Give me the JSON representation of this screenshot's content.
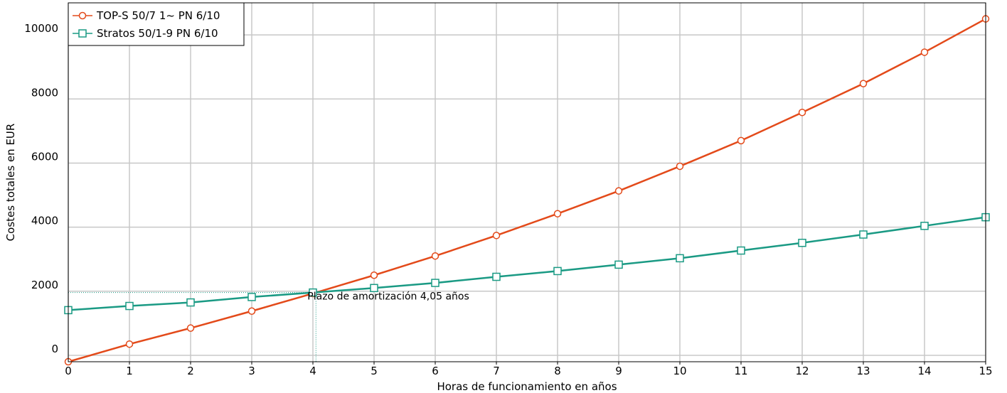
{
  "chart_data": {
    "type": "line",
    "title": "",
    "xlabel": "Horas de funcionamiento en años",
    "ylabel": "Costes totales en EUR",
    "xlim": [
      0,
      15
    ],
    "ylim": [
      -200,
      11000
    ],
    "x_ticks": [
      0,
      1,
      2,
      3,
      4,
      5,
      6,
      7,
      8,
      9,
      10,
      11,
      12,
      13,
      14,
      15
    ],
    "x_tick_labels": [
      "0",
      "1",
      "2",
      "3",
      "4",
      "5",
      "6",
      "7",
      "8",
      "9",
      "10",
      "11",
      "12",
      "13",
      "14",
      "15"
    ],
    "y_ticks": [
      0,
      2000,
      4000,
      6000,
      8000,
      10000
    ],
    "y_tick_labels": [
      "0",
      "2000",
      "4000",
      "6000",
      "8000",
      "10000"
    ],
    "grid": true,
    "legend_position": "top-left",
    "x": [
      0,
      1,
      2,
      3,
      4,
      5,
      6,
      7,
      8,
      9,
      10,
      11,
      12,
      13,
      14,
      15
    ],
    "series": [
      {
        "name": "TOP-S 50/7 1~ PN 6/10",
        "color": "#e34a1a",
        "marker": "circle",
        "values": [
          -200,
          350,
          850,
          1380,
          1930,
          2500,
          3100,
          3740,
          4420,
          5130,
          5900,
          6700,
          7580,
          8480,
          9460,
          10500
        ]
      },
      {
        "name": "Stratos 50/1-9 PN 6/10",
        "color": "#1a9a84",
        "marker": "square",
        "values": [
          1410,
          1540,
          1650,
          1820,
          1960,
          2100,
          2260,
          2450,
          2630,
          2830,
          3030,
          3270,
          3510,
          3770,
          4040,
          4310
        ]
      }
    ],
    "annotation": {
      "text": "Plazo de amortización 4,05 años",
      "x": 4.05,
      "y": 1960
    }
  }
}
